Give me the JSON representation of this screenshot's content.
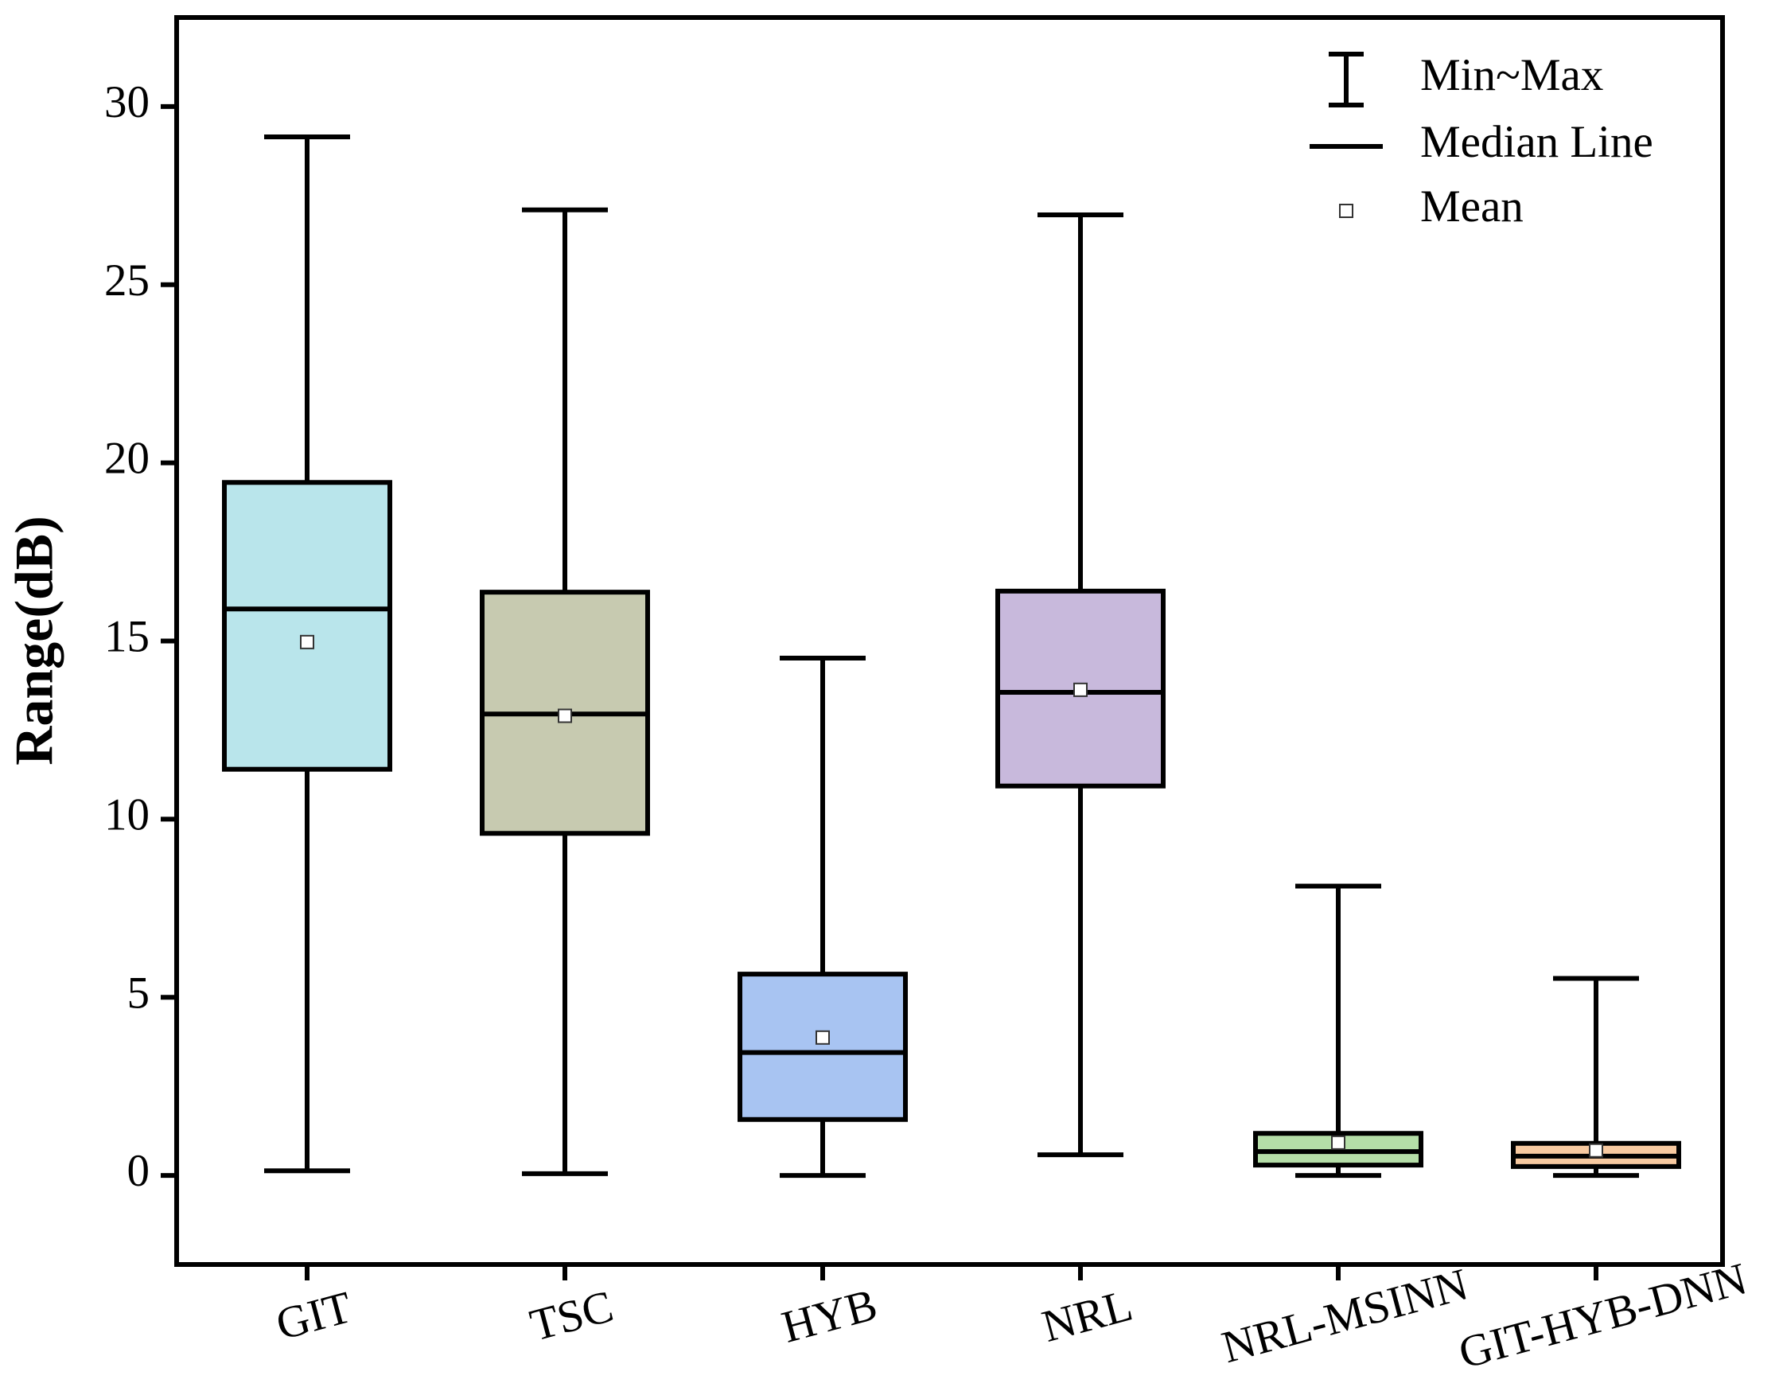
{
  "chart_data": {
    "type": "box",
    "y_label": "Range(dB)",
    "ylim": [
      -2.5,
      32.5
    ],
    "yticks": [
      0,
      5,
      10,
      15,
      20,
      25,
      30
    ],
    "legend": {
      "position": "upper right",
      "items": [
        "Min~Max",
        "Median Line",
        "Mean"
      ]
    },
    "boxes": [
      {
        "category": "GIT",
        "color": "#b9e5eb",
        "min": 0.13,
        "q1": 11.4,
        "median": 15.9,
        "q3": 19.45,
        "max": 29.15,
        "mean": 14.97
      },
      {
        "category": "TSC",
        "color": "#c7cab0",
        "min": 0.05,
        "q1": 9.6,
        "median": 12.95,
        "q3": 16.37,
        "max": 27.1,
        "mean": 12.9
      },
      {
        "category": "HYB",
        "color": "#a8c4f2",
        "min": 0,
        "q1": 1.57,
        "median": 3.45,
        "q3": 5.65,
        "max": 14.52,
        "mean": 3.87
      },
      {
        "category": "NRL",
        "color": "#c8b9dc",
        "min": 0.58,
        "q1": 10.93,
        "median": 13.56,
        "q3": 16.4,
        "max": 26.96,
        "mean": 13.63
      },
      {
        "category": "NRL-MSINN",
        "color": "#b5dea8",
        "min": 0,
        "q1": 0.29,
        "median": 0.67,
        "q3": 1.18,
        "max": 8.12,
        "mean": 0.92
      },
      {
        "category": "GIT-HYB-DNN",
        "color": "#f7c9a0",
        "min": 0,
        "q1": 0.25,
        "median": 0.54,
        "q3": 0.9,
        "max": 5.53,
        "mean": 0.7
      }
    ]
  }
}
